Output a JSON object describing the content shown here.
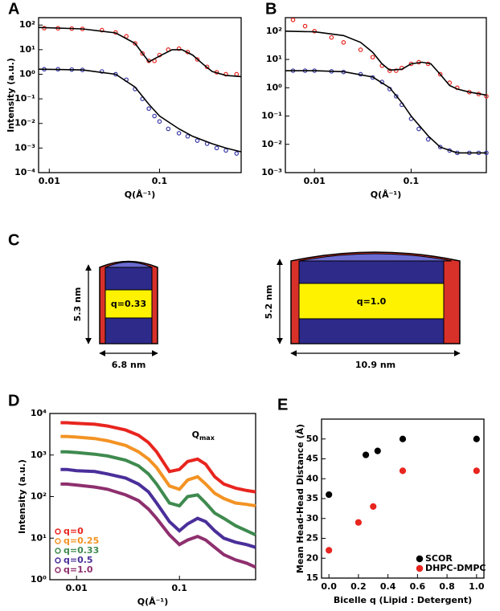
{
  "chart_data": [
    {
      "panel": "A",
      "type": "line",
      "log": true,
      "xlabel": "Q(Å⁻¹)",
      "ylabel": "Intensity (a.u.)",
      "xlim": [
        0.008,
        0.55
      ],
      "ylim": [
        0.0001,
        200
      ],
      "xticks": [
        0.01,
        0.1
      ],
      "yticks": [
        {
          "value": 0.0001,
          "label": "10⁻⁴"
        },
        {
          "value": 0.001,
          "label": "10⁻³"
        },
        {
          "value": 0.01,
          "label": "10⁻²"
        },
        {
          "value": 0.1,
          "label": "10⁻¹"
        },
        {
          "value": 1,
          "label": "10⁰"
        },
        {
          "value": 10,
          "label": "10¹"
        },
        {
          "value": 100,
          "label": "10²"
        }
      ],
      "series": [
        {
          "color": "#e8251f",
          "style": "points",
          "x": [
            0.009,
            0.012,
            0.016,
            0.02,
            0.03,
            0.04,
            0.05,
            0.06,
            0.07,
            0.08,
            0.09,
            0.1,
            0.12,
            0.15,
            0.18,
            0.22,
            0.27,
            0.33,
            0.4,
            0.5
          ],
          "values": [
            75,
            74,
            72,
            70,
            62,
            50,
            35,
            18,
            7,
            3.5,
            3.5,
            6,
            10,
            11,
            8,
            4,
            2,
            1.2,
            1,
            1
          ]
        },
        {
          "color": "#000000",
          "style": "line",
          "x": [
            0.008,
            0.02,
            0.04,
            0.06,
            0.08,
            0.1,
            0.13,
            0.16,
            0.2,
            0.25,
            0.3,
            0.4,
            0.55
          ],
          "values": [
            80,
            70,
            48,
            18,
            3.2,
            5.5,
            10,
            10,
            6,
            2.5,
            1.3,
            0.9,
            0.8
          ]
        },
        {
          "color": "#3a3aa8",
          "style": "points",
          "x": [
            0.009,
            0.012,
            0.016,
            0.02,
            0.03,
            0.04,
            0.05,
            0.06,
            0.07,
            0.08,
            0.09,
            0.1,
            0.12,
            0.15,
            0.18,
            0.22,
            0.27,
            0.33,
            0.4,
            0.5
          ],
          "values": [
            1.6,
            1.6,
            1.55,
            1.5,
            1.3,
            1.0,
            0.6,
            0.25,
            0.1,
            0.04,
            0.02,
            0.012,
            0.006,
            0.004,
            0.003,
            0.002,
            0.0015,
            0.001,
            0.0008,
            0.0006
          ]
        },
        {
          "color": "#000000",
          "style": "line",
          "x": [
            0.008,
            0.02,
            0.04,
            0.06,
            0.08,
            0.1,
            0.15,
            0.2,
            0.3,
            0.4,
            0.55
          ],
          "values": [
            1.6,
            1.5,
            1.0,
            0.3,
            0.06,
            0.02,
            0.006,
            0.003,
            0.0015,
            0.001,
            0.0007
          ]
        }
      ]
    },
    {
      "panel": "B",
      "type": "line",
      "log": true,
      "xlabel": "Q(Å⁻¹)",
      "xlim": [
        0.005,
        0.6
      ],
      "ylim": [
        0.001,
        300
      ],
      "xticks": [
        0.01,
        0.1
      ],
      "yticks": [
        {
          "value": 0.001,
          "label": "10⁻³"
        },
        {
          "value": 0.01,
          "label": "10⁻²"
        },
        {
          "value": 0.1,
          "label": "10⁻¹"
        },
        {
          "value": 1,
          "label": "10⁰"
        },
        {
          "value": 10,
          "label": "10¹"
        },
        {
          "value": 100,
          "label": "10²"
        }
      ],
      "series": [
        {
          "color": "#e8251f",
          "style": "points",
          "x": [
            0.006,
            0.008,
            0.01,
            0.015,
            0.02,
            0.03,
            0.04,
            0.05,
            0.06,
            0.07,
            0.08,
            0.1,
            0.12,
            0.15,
            0.2,
            0.25,
            0.3,
            0.4,
            0.5,
            0.6
          ],
          "values": [
            250,
            150,
            100,
            60,
            40,
            22,
            12,
            6,
            4,
            4,
            5,
            7,
            8,
            7,
            3,
            1.5,
            1,
            0.7,
            0.6,
            0.5
          ]
        },
        {
          "color": "#000000",
          "style": "line",
          "x": [
            0.005,
            0.01,
            0.02,
            0.03,
            0.04,
            0.05,
            0.06,
            0.08,
            0.1,
            0.13,
            0.16,
            0.2,
            0.25,
            0.3,
            0.4,
            0.6
          ],
          "values": [
            100,
            95,
            70,
            40,
            18,
            7,
            4.2,
            4.5,
            7,
            8,
            7,
            3,
            1.2,
            0.9,
            0.7,
            0.55
          ]
        },
        {
          "color": "#3a3aa8",
          "style": "points",
          "x": [
            0.006,
            0.008,
            0.01,
            0.015,
            0.02,
            0.03,
            0.04,
            0.05,
            0.06,
            0.07,
            0.08,
            0.1,
            0.12,
            0.15,
            0.2,
            0.25,
            0.3,
            0.4,
            0.5,
            0.6
          ],
          "values": [
            4,
            4,
            4,
            3.8,
            3.6,
            3,
            2.3,
            1.6,
            0.9,
            0.5,
            0.25,
            0.08,
            0.035,
            0.015,
            0.008,
            0.006,
            0.005,
            0.005,
            0.005,
            0.005
          ]
        },
        {
          "color": "#000000",
          "style": "line",
          "x": [
            0.005,
            0.01,
            0.02,
            0.04,
            0.06,
            0.08,
            0.1,
            0.15,
            0.2,
            0.3,
            0.6
          ],
          "values": [
            4,
            4,
            3.7,
            2.4,
            1,
            0.3,
            0.1,
            0.02,
            0.008,
            0.005,
            0.005
          ]
        }
      ]
    },
    {
      "panel": "D",
      "type": "line",
      "log": true,
      "xlabel": "Q(Å⁻¹)",
      "ylabel": "Intensity (a.u.)",
      "xlim": [
        0.0055,
        0.55
      ],
      "ylim": [
        1,
        10000
      ],
      "xticks": [
        0.01,
        0.1
      ],
      "yticks": [
        {
          "value": 1,
          "label": "10⁰"
        },
        {
          "value": 10,
          "label": "10¹"
        },
        {
          "value": 100,
          "label": "10²"
        },
        {
          "value": 1000,
          "label": "10³"
        },
        {
          "value": 10000,
          "label": "10⁴"
        }
      ],
      "annotation": {
        "text": "Q",
        "sub": "max",
        "x": 0.17,
        "y": 3000
      },
      "legend": "lower left",
      "series": [
        {
          "name": "q=0",
          "color": "#e8251f",
          "style": "thick",
          "x": [
            0.007,
            0.008,
            0.01,
            0.015,
            0.02,
            0.03,
            0.04,
            0.05,
            0.06,
            0.08,
            0.1,
            0.12,
            0.15,
            0.18,
            0.22,
            0.27,
            0.35,
            0.45,
            0.55
          ],
          "values": [
            6000,
            6000,
            5800,
            5500,
            5000,
            4000,
            3000,
            2000,
            1200,
            400,
            450,
            700,
            800,
            600,
            300,
            200,
            160,
            140,
            130
          ]
        },
        {
          "name": "q=0.25",
          "color": "#f39324",
          "style": "thick",
          "x": [
            0.007,
            0.008,
            0.01,
            0.015,
            0.02,
            0.03,
            0.04,
            0.05,
            0.06,
            0.08,
            0.1,
            0.12,
            0.15,
            0.18,
            0.22,
            0.27,
            0.35,
            0.45,
            0.55
          ],
          "values": [
            2800,
            2800,
            2700,
            2500,
            2200,
            1700,
            1200,
            800,
            500,
            180,
            150,
            250,
            300,
            200,
            120,
            90,
            70,
            65,
            60
          ]
        },
        {
          "name": "q=0.33",
          "color": "#3f8a4f",
          "style": "thick",
          "x": [
            0.007,
            0.008,
            0.01,
            0.015,
            0.02,
            0.03,
            0.04,
            0.05,
            0.06,
            0.08,
            0.1,
            0.12,
            0.15,
            0.18,
            0.22,
            0.27,
            0.35,
            0.45,
            0.55
          ],
          "values": [
            1200,
            1200,
            1150,
            1050,
            950,
            750,
            550,
            350,
            200,
            70,
            60,
            100,
            110,
            70,
            40,
            30,
            20,
            15,
            12
          ]
        },
        {
          "name": "q=0.5",
          "color": "#4a2f9a",
          "style": "thick",
          "x": [
            0.007,
            0.008,
            0.01,
            0.015,
            0.02,
            0.03,
            0.04,
            0.05,
            0.06,
            0.08,
            0.1,
            0.12,
            0.15,
            0.18,
            0.22,
            0.27,
            0.35,
            0.45,
            0.55
          ],
          "values": [
            450,
            450,
            420,
            400,
            350,
            280,
            200,
            130,
            70,
            25,
            15,
            22,
            30,
            25,
            15,
            10,
            8,
            7,
            6
          ]
        },
        {
          "name": "q=1.0",
          "color": "#8e2f6e",
          "style": "thick",
          "x": [
            0.007,
            0.008,
            0.01,
            0.015,
            0.02,
            0.03,
            0.04,
            0.05,
            0.06,
            0.08,
            0.1,
            0.12,
            0.15,
            0.18,
            0.22,
            0.27,
            0.35,
            0.45,
            0.55
          ],
          "values": [
            200,
            200,
            190,
            170,
            150,
            110,
            80,
            50,
            30,
            12,
            7,
            9,
            11,
            9,
            6,
            4,
            3,
            2.5,
            2
          ]
        }
      ]
    },
    {
      "panel": "E",
      "type": "scatter",
      "log": false,
      "xlabel": "Bicelle q (Lipid : Detergent)",
      "ylabel": "Mean Head-Head Distance (Å)",
      "xlim": [
        -0.05,
        1.05
      ],
      "ylim": [
        15,
        55
      ],
      "xticks": [
        {
          "value": 0,
          "label": "0.0"
        },
        0.2,
        0.4,
        0.6,
        0.8,
        {
          "value": 1,
          "label": "1.0"
        }
      ],
      "yticks": [
        15,
        20,
        25,
        30,
        35,
        40,
        45,
        50
      ],
      "legend": "lower right",
      "series": [
        {
          "name": "SCOR",
          "color": "#000000",
          "style": "dots",
          "x": [
            0,
            0.25,
            0.33,
            0.5,
            1.0
          ],
          "values": [
            36,
            46,
            47,
            50,
            50
          ]
        },
        {
          "name": "DHPC-DMPC",
          "color": "#e8251f",
          "style": "dots",
          "x": [
            0,
            0.2,
            0.3,
            0.5,
            1.0
          ],
          "values": [
            22,
            29,
            33,
            42,
            42
          ]
        }
      ]
    }
  ],
  "diagram": {
    "panel": "C",
    "left": {
      "label": "q=0.33",
      "height": "5.3 nm",
      "width": "6.8 nm"
    },
    "right": {
      "label": "q=1.0",
      "height": "5.2 nm",
      "width": "10.9 nm"
    }
  }
}
